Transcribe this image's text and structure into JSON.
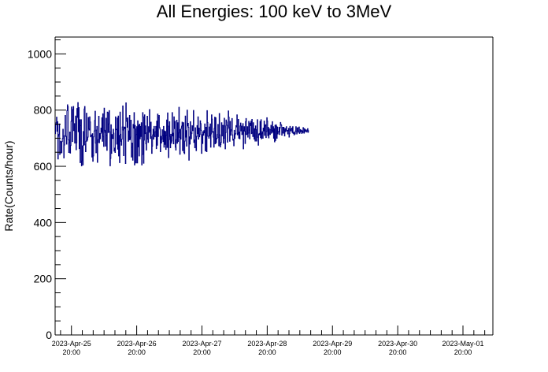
{
  "chart_data": {
    "type": "line",
    "title": "All Energies:  100 keV to 3MeV",
    "ylabel": "Rate(Counts/hour)",
    "xlabel": "",
    "ylim": [
      0,
      1060
    ],
    "xlim": [
      "2023-Apr-25 14:00",
      "2023-May-02 07:00"
    ],
    "y_ticks": [
      0,
      200,
      400,
      600,
      800,
      1000
    ],
    "x_ticks": [
      {
        "date": "2023-Apr-25",
        "time": "20:00"
      },
      {
        "date": "2023-Apr-26",
        "time": "20:00"
      },
      {
        "date": "2023-Apr-27",
        "time": "20:00"
      },
      {
        "date": "2023-Apr-28",
        "time": "20:00"
      },
      {
        "date": "2023-Apr-29",
        "time": "20:00"
      },
      {
        "date": "2023-Apr-30",
        "time": "20:00"
      },
      {
        "date": "2023-May-01",
        "time": "20:00"
      }
    ],
    "series": [
      {
        "color": "#000080",
        "style": "histogram-step",
        "bin_minutes": 10,
        "values": [
          716,
          748,
          755,
          775,
          725,
          759,
          626,
          707,
          714,
          751,
          642,
          647,
          689,
          685,
          648,
          688,
          699,
          732,
          707,
          630,
          676,
          710,
          781,
          707,
          706,
          679,
          798,
          819,
          812,
          694,
          649,
          684,
          722,
          647,
          674,
          760,
          811,
          765,
          688,
          802,
          813,
          727,
          752,
          683,
          723,
          779,
          659,
          684,
          806,
          774,
          827,
          723,
          809,
          663,
          766,
          613,
          745,
          766,
          602,
          619,
          673,
          605,
          724,
          675,
          804,
          813,
          677,
          652,
          689,
          789,
          690,
          695,
          704,
          774,
          733,
          729,
          776,
          758,
          705,
          710,
          712,
          633,
          716,
          618,
          637,
          705,
          726,
          763,
          796,
          683,
          648,
          729,
          742,
          614,
          686,
          695,
          778,
          684,
          717,
          698,
          717,
          736,
          721,
          773,
          689,
          787,
          706,
          671,
          807,
          728,
          721,
          672,
          771,
          711,
          657,
          793,
          791,
          720,
          751,
          798,
          723,
          602,
          628,
          748,
          646,
          713,
          699,
          699,
          732,
          718,
          654,
          665,
          649,
          776,
          730,
          732,
          679,
          772,
          661,
          779,
          637,
          710,
          613,
          793,
          714,
          689,
          675,
          697,
          740,
          815,
          729,
          638,
          740,
          734,
          739,
          610,
          826,
          770,
          760,
          739,
          773,
          689,
          726,
          694,
          781,
          695,
          704,
          764,
          633,
          668,
          683,
          622,
          749,
          736,
          791,
          605,
          746,
          733,
          612,
          713,
          741,
          612,
          762,
          669,
          746,
          637,
          750,
          698,
          742,
          706,
          755,
          605,
          642,
          791,
          776,
          611,
          693,
          783,
          716,
          744,
          680,
          658,
          719,
          778,
          697,
          685,
          741,
          721,
          802,
          728,
          699,
          757,
          705,
          646,
          672,
          712,
          732,
          697,
          742,
          710,
          705,
          723,
          742,
          663,
          761,
          675,
          786,
          706,
          773,
          781,
          739,
          733,
          652,
          707,
          683,
          696,
          730,
          711,
          688,
          742,
          668,
          726,
          678,
          724,
          660,
          711,
          765,
          667,
          790,
          743,
          631,
          695,
          759,
          706,
          666,
          714,
          682,
          690,
          791,
          708,
          718,
          680,
          776,
          734,
          760,
          668,
          658,
          695,
          764,
          682,
          755,
          688,
          719,
          810,
          703,
          643,
          731,
          697,
          735,
          743,
          757,
          656,
          744,
          755,
          649,
          645,
          690,
          779,
          704,
          727,
          672,
          800,
          744,
          753,
          739,
          622,
          705,
          679,
          759,
          722,
          698,
          716,
          745,
          727,
          741,
          799,
          685,
          694,
          666,
          737,
          707,
          656,
          706,
          745,
          716,
          776,
          697,
          736,
          705,
          713,
          762,
          752,
          728,
          646,
          713,
          681,
          723,
          711,
          727,
          719,
          751,
          655,
          737,
          739,
          652,
          798,
          756,
          707,
          707,
          700,
          740,
          708,
          751,
          668,
          715,
          783,
          768,
          721,
          724,
          704,
          668,
          735,
          775,
          680,
          773,
          684,
          698,
          700,
          713,
          749,
          703,
          673,
          788,
          712,
          669,
          677,
          685,
          755,
          708,
          745,
          746,
          682,
          700,
          771,
          744,
          662,
          720,
          765,
          758,
          746,
          686,
          733,
          797,
          775,
          738,
          689,
          760,
          711,
          726,
          731,
          770,
          712,
          693,
          697,
          673,
          728,
          699,
          713,
          716,
          745,
          740,
          783,
          712,
          717,
          767,
          700,
          722,
          698,
          744,
          754,
          726,
          743,
          713,
          718,
          752,
          662,
          728,
          741,
          725,
          681,
          759,
          770,
          713,
          715,
          741,
          704,
          718,
          760,
          729,
          698,
          754,
          745,
          761,
          716,
          767,
          720,
          706,
          755,
          707,
          697,
          734,
          690,
          744,
          731,
          690,
          718,
          766,
          703,
          675,
          714,
          717,
          712,
          760,
          702,
          766,
          698,
          716,
          723,
          700,
          736,
          726,
          761,
          710,
          744,
          748,
          702,
          724,
          773,
          761,
          709,
          739,
          701,
          734,
          718,
          713,
          731,
          746,
          718,
          728,
          759,
          721,
          741,
          700,
          734,
          687,
          746,
          692,
          748,
          743,
          700,
          740,
          715,
          722,
          724,
          739,
          713,
          736,
          756,
          749,
          746,
          711,
          722,
          739,
          718,
          739,
          729,
          708,
          735,
          723,
          731,
          741,
          726,
          728,
          715,
          727,
          735,
          704,
          716,
          742,
          729,
          726,
          733,
          736,
          720,
          741,
          717,
          721,
          712,
          721,
          715,
          726,
          741,
          723,
          715,
          737,
          727,
          721,
          737,
          740,
          717,
          721,
          731,
          724,
          728,
          717,
          726,
          720,
          738,
          734,
          718,
          734,
          723,
          728,
          730,
          724,
          722,
          728,
          734,
          721,
          727
        ]
      }
    ],
    "grid": false,
    "legend": "none"
  }
}
